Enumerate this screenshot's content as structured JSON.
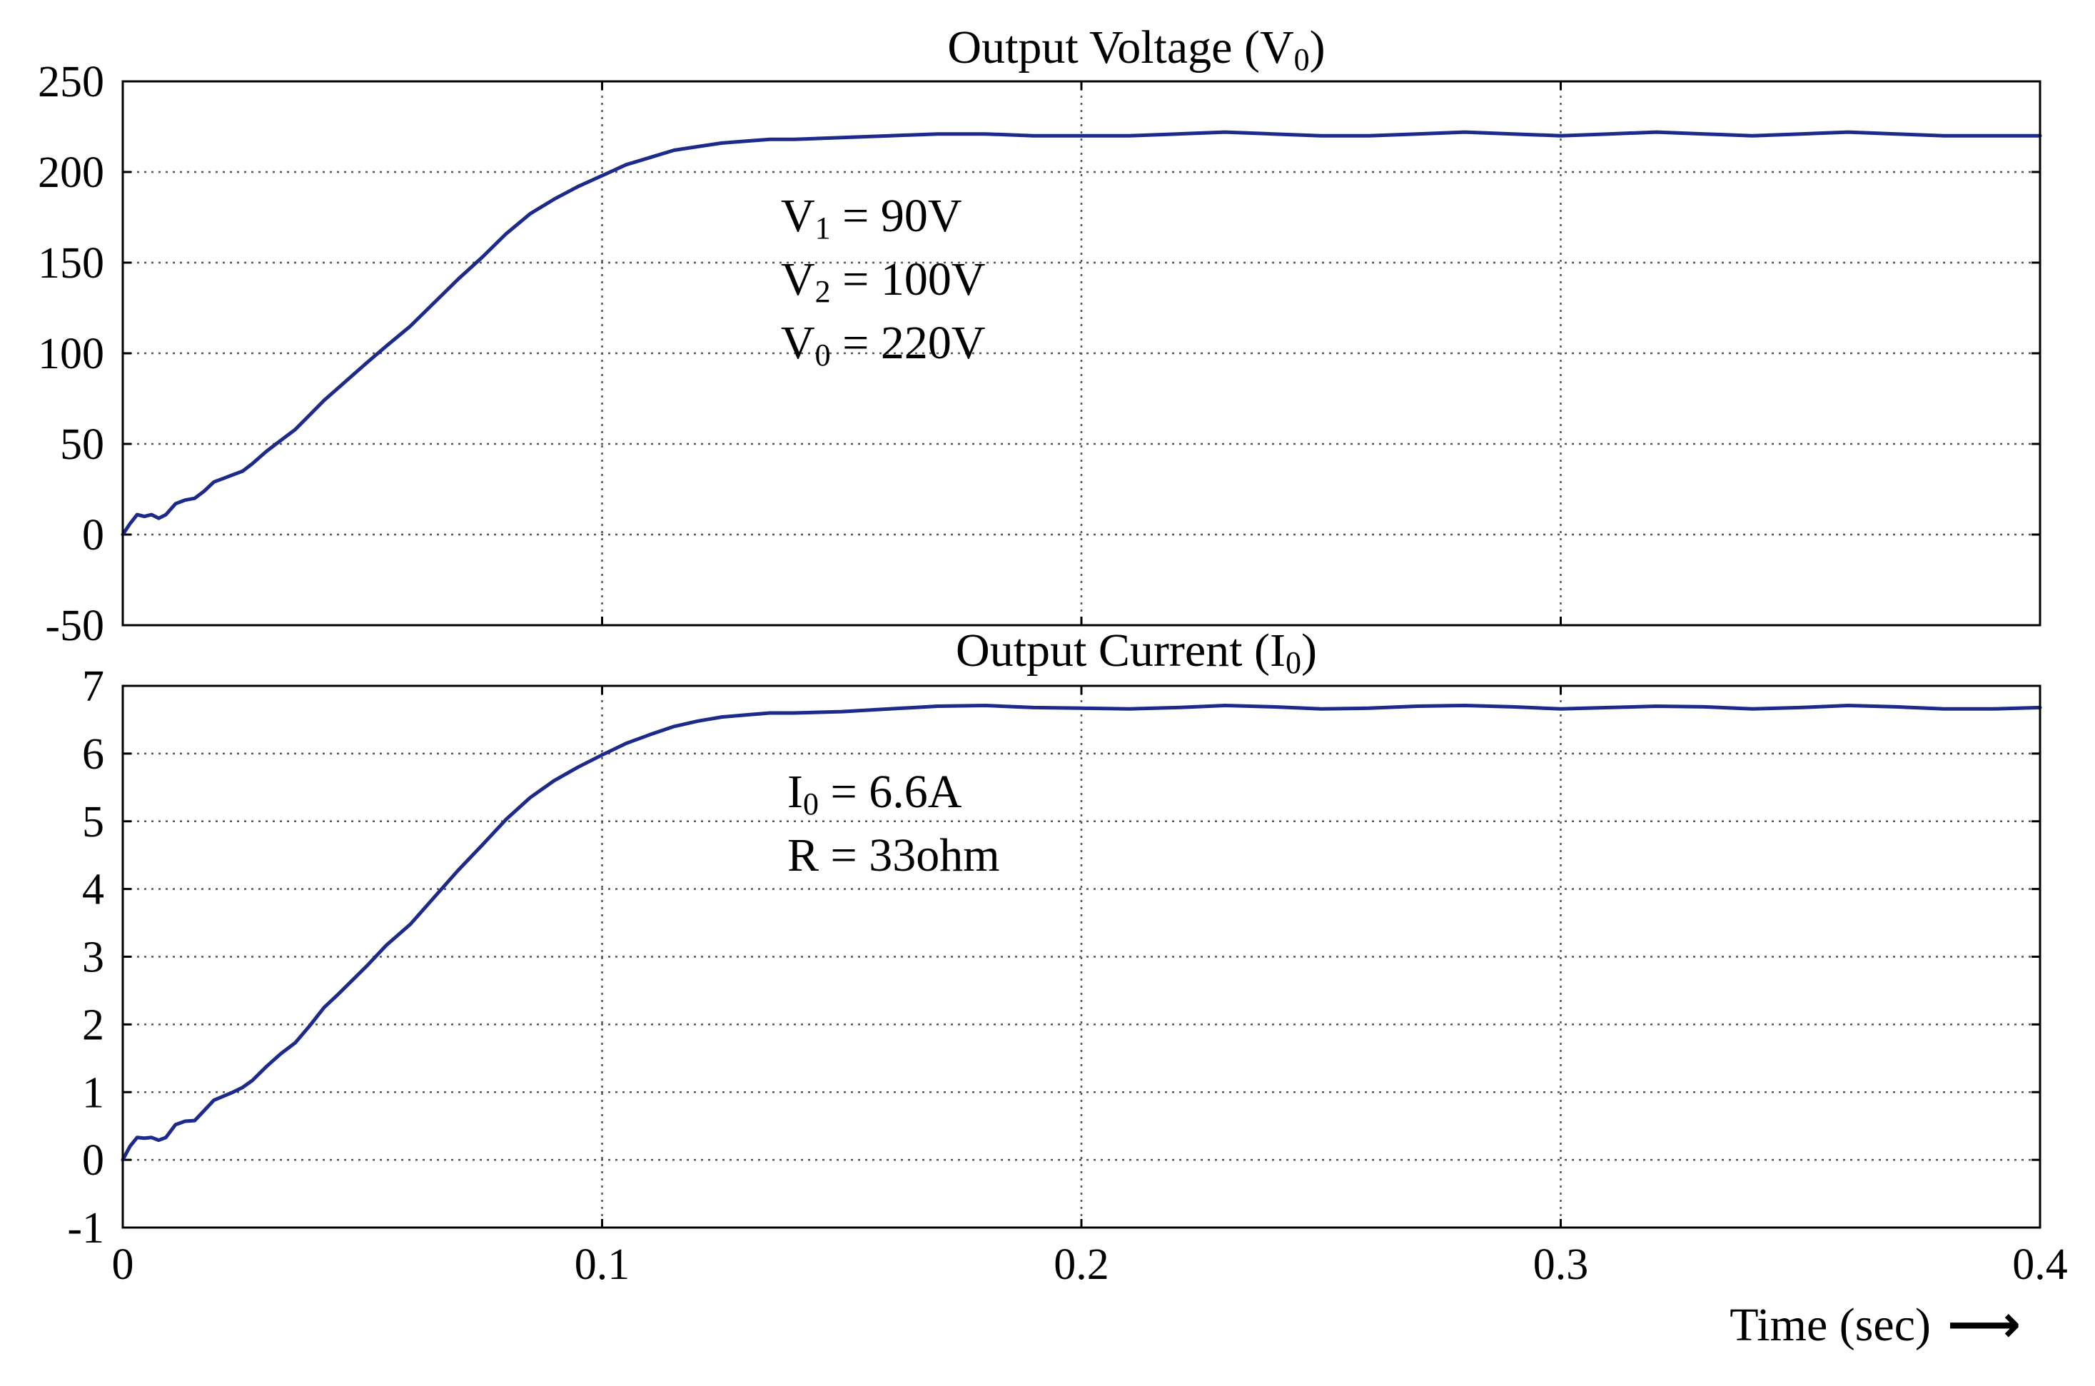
{
  "chart_data": [
    {
      "type": "line",
      "title_main": "Output Voltage (V",
      "title_sub": "0",
      "title_end": ")",
      "xlim": [
        0,
        0.4
      ],
      "ylim": [
        -50,
        250
      ],
      "xticks": [
        0,
        0.1,
        0.2,
        0.3,
        0.4
      ],
      "yticks": [
        -50,
        0,
        50,
        100,
        150,
        200,
        250
      ],
      "ytick_labels": [
        "-50",
        "0",
        "50",
        "100",
        "150",
        "200",
        "250"
      ],
      "grid": true,
      "line_color": "#1c2a8c",
      "series": [
        {
          "name": "Output Voltage",
          "x": [
            0,
            0.0015,
            0.003,
            0.0045,
            0.006,
            0.0075,
            0.009,
            0.011,
            0.013,
            0.015,
            0.017,
            0.019,
            0.021,
            0.023,
            0.025,
            0.027,
            0.03,
            0.033,
            0.036,
            0.039,
            0.042,
            0.045,
            0.048,
            0.051,
            0.055,
            0.06,
            0.065,
            0.07,
            0.075,
            0.08,
            0.085,
            0.09,
            0.095,
            0.1,
            0.105,
            0.11,
            0.115,
            0.12,
            0.125,
            0.13,
            0.135,
            0.14,
            0.15,
            0.16,
            0.17,
            0.18,
            0.19,
            0.2,
            0.21,
            0.22,
            0.23,
            0.24,
            0.25,
            0.26,
            0.27,
            0.28,
            0.29,
            0.3,
            0.31,
            0.32,
            0.33,
            0.34,
            0.35,
            0.36,
            0.37,
            0.38,
            0.39,
            0.4
          ],
          "values": [
            0,
            6,
            11,
            10,
            11,
            9,
            11,
            17,
            19,
            20,
            24,
            29,
            31,
            33,
            35,
            39,
            46,
            52,
            58,
            66,
            74,
            81,
            88,
            95,
            104,
            115,
            128,
            141,
            153,
            166,
            177,
            185,
            192,
            198,
            204,
            208,
            212,
            214,
            216,
            217,
            218,
            218,
            219,
            220,
            221,
            221,
            220,
            220,
            220,
            221,
            222,
            221,
            220,
            220,
            221,
            222,
            221,
            220,
            221,
            222,
            221,
            220,
            221,
            222,
            221,
            220,
            220,
            220
          ]
        }
      ],
      "annotations": [
        {
          "main": "V",
          "sub": "1",
          "rest": " = 90V"
        },
        {
          "main": "V",
          "sub": "2",
          "rest": " = 100V"
        },
        {
          "main": "V",
          "sub": "0",
          "rest": " = 220V"
        }
      ]
    },
    {
      "type": "line",
      "title_main": "Output Current (I",
      "title_sub": "0",
      "title_end": ")",
      "xlim": [
        0,
        0.4
      ],
      "ylim": [
        -1,
        7
      ],
      "xticks": [
        0,
        0.1,
        0.2,
        0.3,
        0.4
      ],
      "xtick_labels": [
        "0",
        "0.1",
        "0.2",
        "0.3",
        "0.4"
      ],
      "yticks": [
        -1,
        0,
        1,
        2,
        3,
        4,
        5,
        6,
        7
      ],
      "ytick_labels": [
        "-1",
        "0",
        "1",
        "2",
        "3",
        "4",
        "5",
        "6",
        "7"
      ],
      "xlabel": "Time (sec)",
      "xlabel_arrow": "⟶",
      "grid": true,
      "line_color": "#1c2a8c",
      "series": [
        {
          "name": "Output Current",
          "x": [
            0,
            0.0015,
            0.003,
            0.0045,
            0.006,
            0.0075,
            0.009,
            0.011,
            0.013,
            0.015,
            0.017,
            0.019,
            0.021,
            0.023,
            0.025,
            0.027,
            0.03,
            0.033,
            0.036,
            0.039,
            0.042,
            0.045,
            0.048,
            0.051,
            0.055,
            0.06,
            0.065,
            0.07,
            0.075,
            0.08,
            0.085,
            0.09,
            0.095,
            0.1,
            0.105,
            0.11,
            0.115,
            0.12,
            0.125,
            0.13,
            0.135,
            0.14,
            0.15,
            0.16,
            0.17,
            0.18,
            0.19,
            0.2,
            0.21,
            0.22,
            0.23,
            0.24,
            0.25,
            0.26,
            0.27,
            0.28,
            0.29,
            0.3,
            0.31,
            0.32,
            0.33,
            0.34,
            0.35,
            0.36,
            0.37,
            0.38,
            0.39,
            0.4
          ],
          "values": [
            0,
            0.2,
            0.33,
            0.32,
            0.33,
            0.29,
            0.33,
            0.52,
            0.57,
            0.58,
            0.73,
            0.88,
            0.94,
            1.0,
            1.07,
            1.17,
            1.38,
            1.57,
            1.73,
            1.98,
            2.25,
            2.45,
            2.66,
            2.87,
            3.17,
            3.48,
            3.88,
            4.28,
            4.65,
            5.03,
            5.35,
            5.6,
            5.8,
            5.98,
            6.15,
            6.28,
            6.4,
            6.48,
            6.54,
            6.57,
            6.6,
            6.6,
            6.62,
            6.66,
            6.7,
            6.71,
            6.68,
            6.67,
            6.66,
            6.68,
            6.71,
            6.69,
            6.66,
            6.67,
            6.7,
            6.71,
            6.69,
            6.66,
            6.68,
            6.7,
            6.69,
            6.66,
            6.68,
            6.71,
            6.69,
            6.66,
            6.66,
            6.68
          ]
        }
      ],
      "annotations": [
        {
          "main": "I",
          "sub": "0",
          "rest": " = 6.6A"
        },
        {
          "main": "R = 33ohm",
          "sub": "",
          "rest": ""
        }
      ]
    }
  ]
}
